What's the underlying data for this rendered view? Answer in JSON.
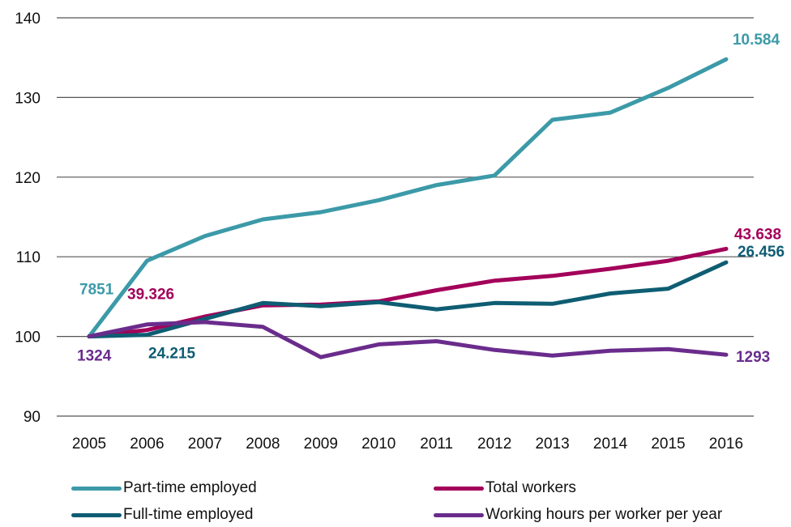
{
  "chart_data": {
    "type": "line",
    "title": "",
    "xlabel": "",
    "ylabel": "",
    "categories": [
      "2005",
      "2006",
      "2007",
      "2008",
      "2009",
      "2010",
      "2011",
      "2012",
      "2013",
      "2014",
      "2015",
      "2016"
    ],
    "ylim": [
      90,
      140
    ],
    "yticks": [
      "90",
      "100",
      "110",
      "120",
      "130",
      "140"
    ],
    "grid": true,
    "legend_position": "bottom",
    "series": [
      {
        "name": "Part-time employed",
        "color": "#3c9aa8",
        "values": [
          100,
          109.5,
          112.6,
          114.7,
          115.6,
          117.1,
          119.0,
          120.2,
          127.2,
          128.1,
          131.2,
          134.8
        ]
      },
      {
        "name": "Total workers",
        "color": "#a3005a",
        "values": [
          100,
          100.8,
          102.5,
          103.9,
          104.0,
          104.4,
          105.8,
          107.0,
          107.6,
          108.5,
          109.5,
          111.0
        ]
      },
      {
        "name": "Full-time employed",
        "color": "#0e5d73",
        "values": [
          100,
          100.2,
          102.2,
          104.2,
          103.8,
          104.3,
          103.4,
          104.2,
          104.1,
          105.4,
          106.0,
          109.3
        ]
      },
      {
        "name": "Working hours per worker per year",
        "color": "#6a2c8c",
        "values": [
          100,
          101.5,
          101.8,
          101.2,
          97.4,
          99.0,
          99.4,
          98.3,
          97.6,
          98.2,
          98.4,
          97.7
        ]
      }
    ],
    "annotations": [
      {
        "text": "7851",
        "series": "Part-time employed",
        "point": "start"
      },
      {
        "text": "10.584",
        "series": "Part-time employed",
        "point": "end"
      },
      {
        "text": "39.326",
        "series": "Total workers",
        "point": "start"
      },
      {
        "text": "43.638",
        "series": "Total workers",
        "point": "end"
      },
      {
        "text": "24.215",
        "series": "Full-time employed",
        "point": "start"
      },
      {
        "text": "26.456",
        "series": "Full-time employed",
        "point": "end"
      },
      {
        "text": "1324",
        "series": "Working hours per worker per year",
        "point": "start"
      },
      {
        "text": "1293",
        "series": "Working hours per worker per year",
        "point": "end"
      }
    ]
  }
}
